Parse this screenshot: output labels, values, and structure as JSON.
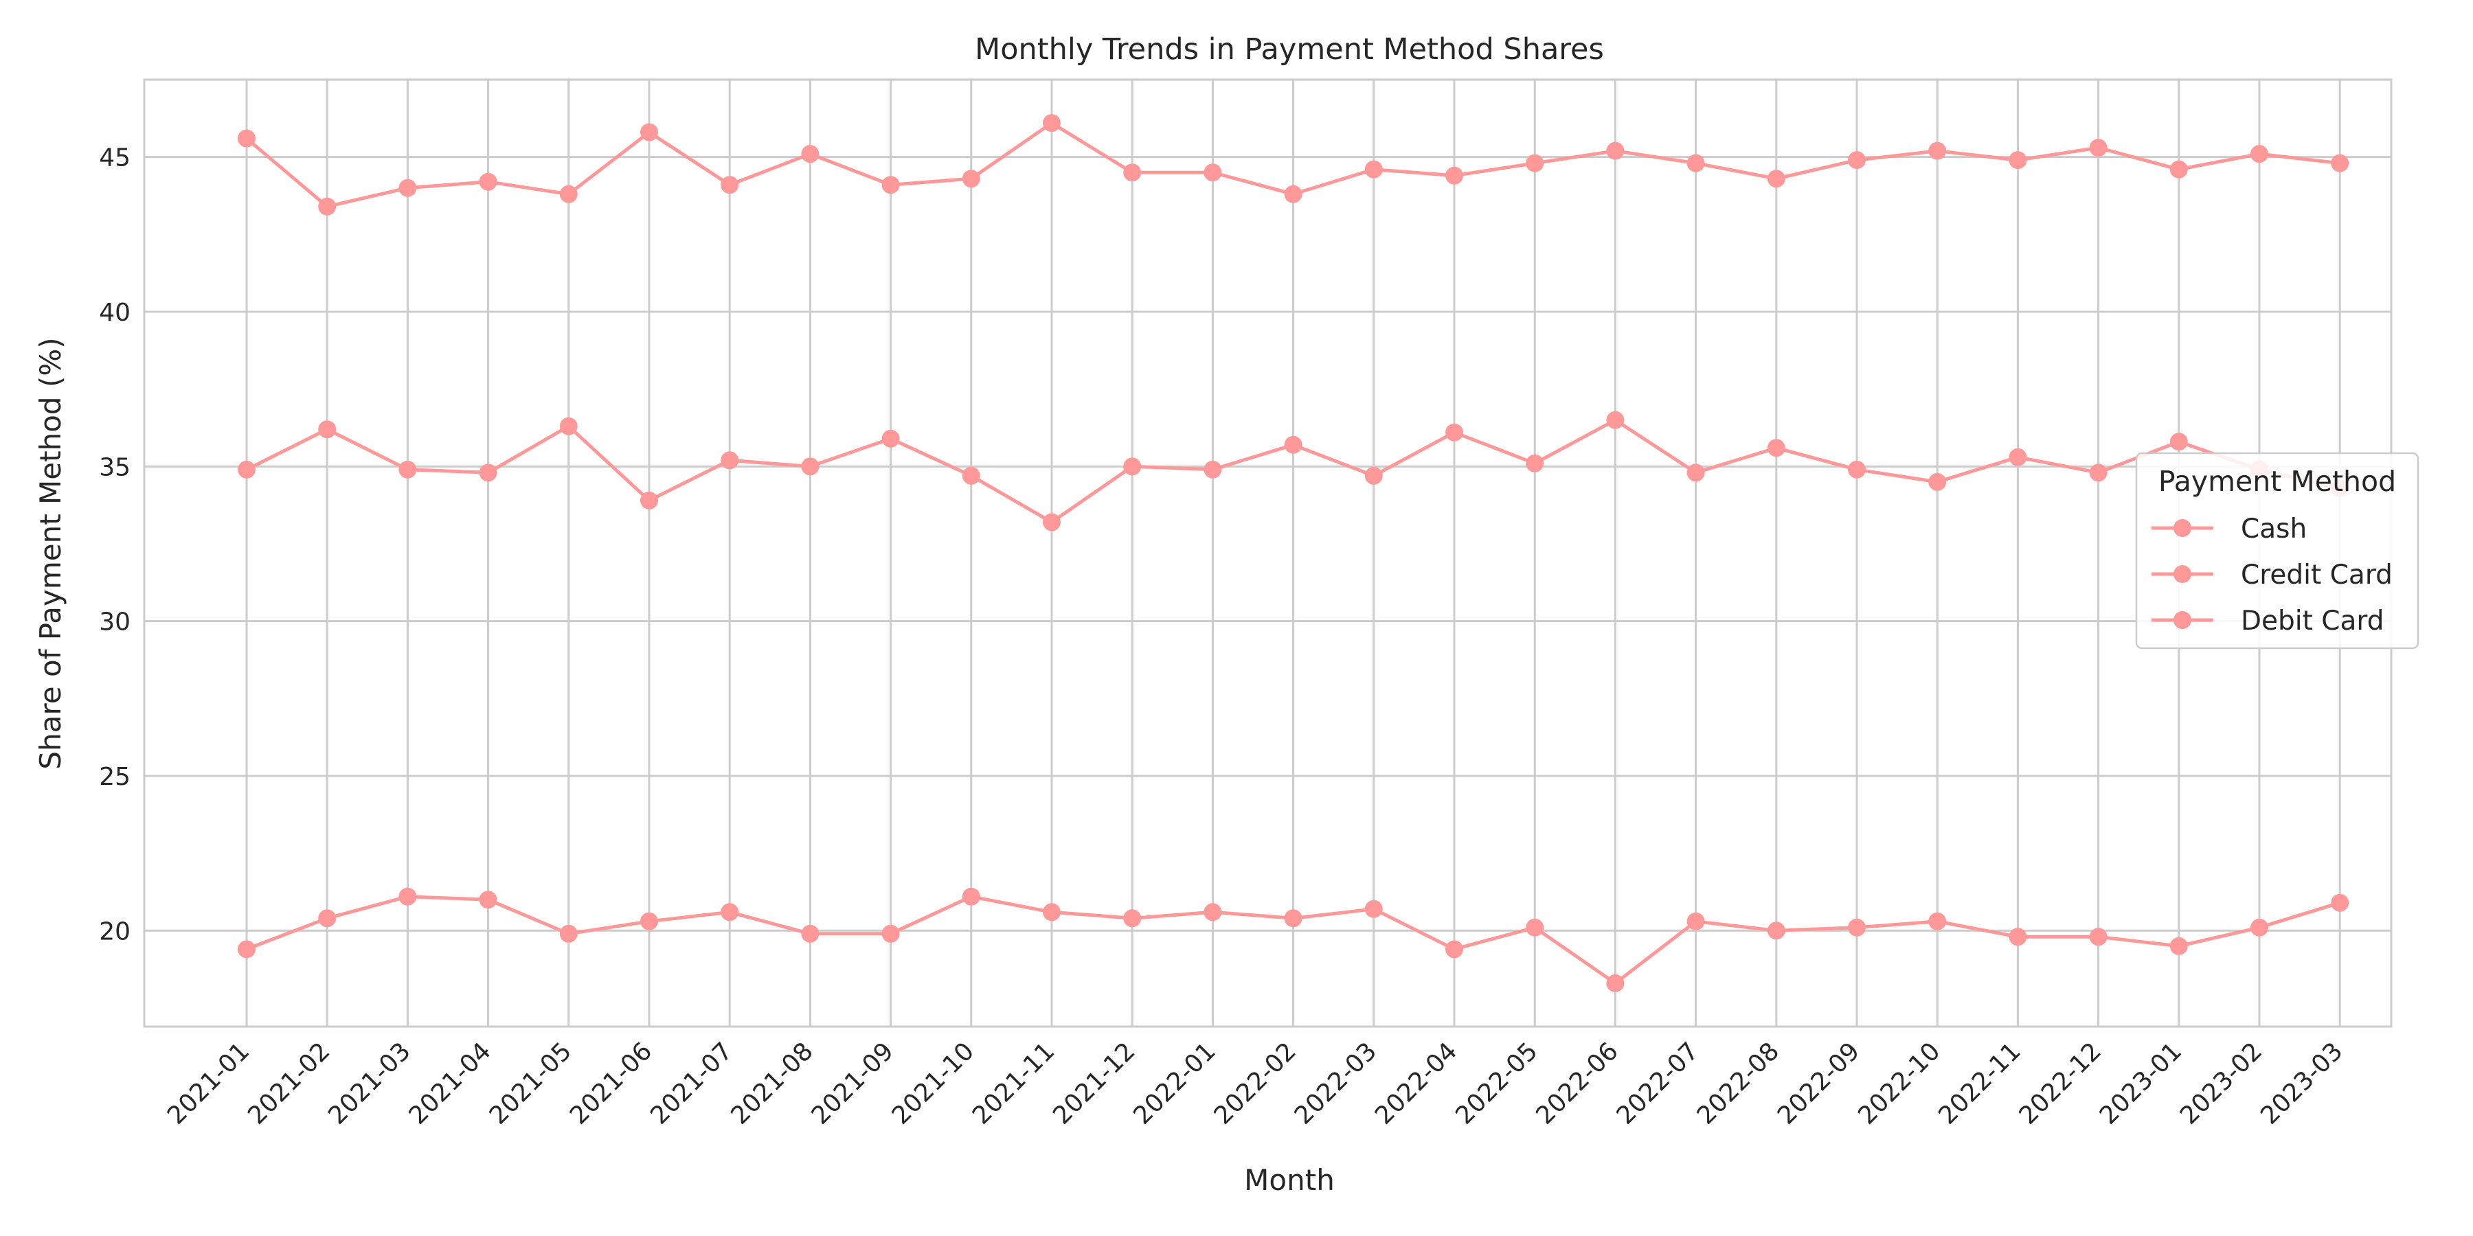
{
  "chart_data": {
    "type": "line",
    "title": "Monthly Trends in Payment Method Shares",
    "xlabel": "Month",
    "ylabel": "Share of Payment Method (%)",
    "ylim": [
      16.9,
      47.5
    ],
    "yticks": [
      20,
      25,
      30,
      35,
      40,
      45
    ],
    "grid": true,
    "legend_title": "Payment Method",
    "legend_position": "right",
    "line_color": "#ff9999",
    "categories": [
      "2021-01",
      "2021-02",
      "2021-03",
      "2021-04",
      "2021-05",
      "2021-06",
      "2021-07",
      "2021-08",
      "2021-09",
      "2021-10",
      "2021-11",
      "2021-12",
      "2022-01",
      "2022-02",
      "2022-03",
      "2022-04",
      "2022-05",
      "2022-06",
      "2022-07",
      "2022-08",
      "2022-09",
      "2022-10",
      "2022-11",
      "2022-12",
      "2023-01",
      "2023-02",
      "2023-03"
    ],
    "series": [
      {
        "name": "Cash",
        "values": [
          45.6,
          43.4,
          44.0,
          44.2,
          43.8,
          45.8,
          44.1,
          45.1,
          44.1,
          44.3,
          46.1,
          44.5,
          44.5,
          43.8,
          44.6,
          44.4,
          44.8,
          45.2,
          44.8,
          44.3,
          44.9,
          45.2,
          44.9,
          45.3,
          44.6,
          45.1,
          44.8
        ]
      },
      {
        "name": "Credit Card",
        "values": [
          34.9,
          36.2,
          34.9,
          34.8,
          36.3,
          33.9,
          35.2,
          35.0,
          35.9,
          34.7,
          33.2,
          35.0,
          34.9,
          35.7,
          34.7,
          36.1,
          35.1,
          36.5,
          34.8,
          35.6,
          34.9,
          34.5,
          35.3,
          34.8,
          35.8,
          34.9,
          34.3
        ]
      },
      {
        "name": "Debit Card",
        "values": [
          19.4,
          20.4,
          21.1,
          21.0,
          19.9,
          20.3,
          20.6,
          19.9,
          19.9,
          21.1,
          20.6,
          20.4,
          20.6,
          20.4,
          20.7,
          19.4,
          20.1,
          18.3,
          20.3,
          20.0,
          20.1,
          20.3,
          19.8,
          19.8,
          19.5,
          20.1,
          20.9
        ]
      }
    ]
  }
}
